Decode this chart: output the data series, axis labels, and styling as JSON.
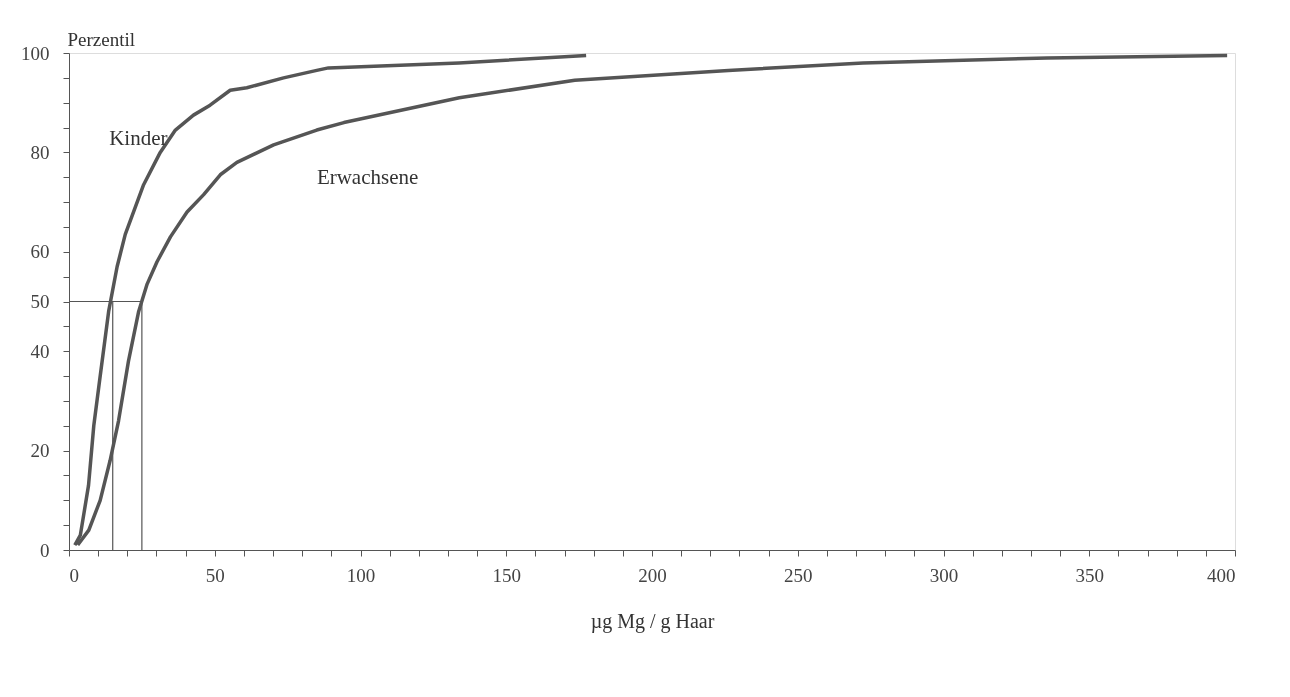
{
  "chart_data": {
    "type": "line",
    "xlabel": "µg Mg / g Haar",
    "ylabel": "Perzentil",
    "xlim": [
      0,
      400
    ],
    "ylim": [
      0,
      100
    ],
    "xticks": [
      0,
      {
        "value": 10,
        "label": null
      },
      {
        "value": 20,
        "label": null
      },
      {
        "value": 30,
        "label": null
      },
      {
        "value": 40,
        "label": null
      },
      50,
      {
        "value": 60,
        "label": null
      },
      {
        "value": 70,
        "label": null
      },
      {
        "value": 80,
        "label": null
      },
      {
        "value": 90,
        "label": null
      },
      100,
      {
        "value": 110,
        "label": null
      },
      {
        "value": 120,
        "label": null
      },
      {
        "value": 130,
        "label": null
      },
      {
        "value": 140,
        "label": null
      },
      150,
      {
        "value": 160,
        "label": null
      },
      {
        "value": 170,
        "label": null
      },
      {
        "value": 180,
        "label": null
      },
      {
        "value": 190,
        "label": null
      },
      200,
      {
        "value": 210,
        "label": null
      },
      {
        "value": 220,
        "label": null
      },
      {
        "value": 230,
        "label": null
      },
      {
        "value": 240,
        "label": null
      },
      250,
      {
        "value": 260,
        "label": null
      },
      {
        "value": 270,
        "label": null
      },
      {
        "value": 280,
        "label": null
      },
      {
        "value": 290,
        "label": null
      },
      300,
      {
        "value": 310,
        "label": null
      },
      {
        "value": 320,
        "label": null
      },
      {
        "value": 330,
        "label": null
      },
      {
        "value": 340,
        "label": null
      },
      350,
      {
        "value": 360,
        "label": null
      },
      {
        "value": 370,
        "label": null
      },
      {
        "value": 380,
        "label": null
      },
      {
        "value": 390,
        "label": null
      },
      400
    ],
    "yticks": [
      0,
      {
        "value": 5,
        "label": null
      },
      {
        "value": 10,
        "label": null
      },
      {
        "value": 15,
        "label": null
      },
      20,
      {
        "value": 25,
        "label": null
      },
      {
        "value": 30,
        "label": null
      },
      {
        "value": 35,
        "label": null
      },
      40,
      {
        "value": 45,
        "label": null
      },
      50,
      {
        "value": 55,
        "label": null
      },
      60,
      {
        "value": 65,
        "label": null
      },
      {
        "value": 70,
        "label": null
      },
      {
        "value": 75,
        "label": null
      },
      80,
      {
        "value": 85,
        "label": null
      },
      {
        "value": 90,
        "label": null
      },
      {
        "value": 95,
        "label": null
      },
      100
    ],
    "grid": false,
    "marker": "none",
    "line_style": "solid",
    "series": [
      {
        "color": "#555555",
        "x": [
          0,
          25,
          25
        ],
        "values": [
          50,
          50,
          0
        ]
      },
      {
        "color": "#555555",
        "x": [
          15,
          15
        ],
        "values": [
          50,
          0
        ]
      },
      {
        "name": "Kinder",
        "color": "#555555",
        "x": [
          2,
          3.9,
          6.7,
          8.5,
          10.7,
          13.6,
          16.5,
          19.3,
          25.6,
          31.3,
          36.5,
          42.7,
          48.4,
          55.3,
          61,
          73.6,
          85,
          89,
          133.8,
          177.4
        ],
        "values": [
          1,
          3,
          13,
          25,
          35,
          48,
          57,
          63.5,
          73.5,
          80,
          84.5,
          87.5,
          89.5,
          92.5,
          93,
          95,
          96.5,
          97,
          98,
          99.5
        ]
      },
      {
        "name": "Erwachsene",
        "color": "#555555",
        "x": [
          3,
          6.8,
          10.7,
          14.1,
          17,
          20.4,
          23.9,
          26.8,
          30.2,
          34.8,
          40.5,
          46.2,
          51.9,
          57.6,
          70.2,
          85,
          94.3,
          133.9,
          173.5,
          226.2,
          272.4,
          335.5,
          397.3
        ],
        "values": [
          1,
          4,
          10,
          18,
          26,
          38,
          48,
          53.5,
          58,
          63,
          68,
          71.5,
          75.5,
          78,
          81.5,
          84.5,
          86,
          91,
          94.5,
          96.5,
          98,
          99,
          99.5
        ]
      }
    ]
  }
}
